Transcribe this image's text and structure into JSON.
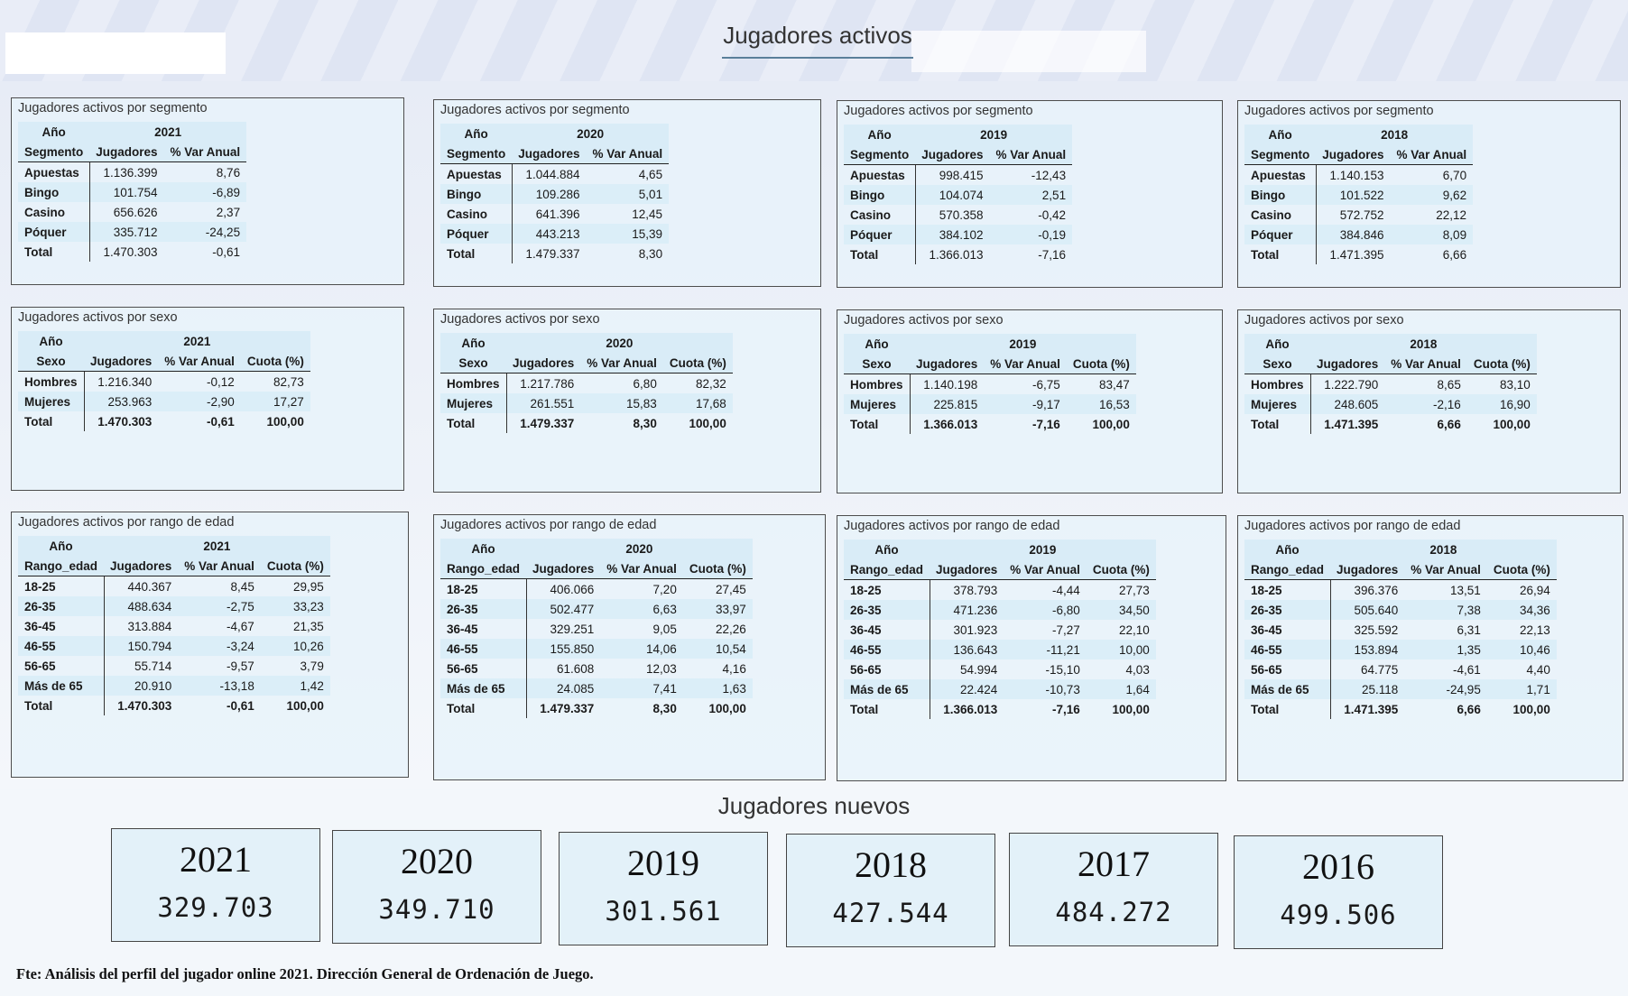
{
  "header": {
    "title": "Jugadores activos"
  },
  "segment_panels": [
    {
      "title": "Jugadores activos por segmento",
      "year_label": "Año",
      "year": "2021",
      "row_header": "Segmento",
      "col1": "Jugadores",
      "col2": "% Var Anual",
      "rows": [
        [
          "Apuestas",
          "1.136.399",
          "8,76"
        ],
        [
          "Bingo",
          "101.754",
          "-6,89"
        ],
        [
          "Casino",
          "656.626",
          "2,37"
        ],
        [
          "Póquer",
          "335.712",
          "-24,25"
        ],
        [
          "Total",
          "1.470.303",
          "-0,61"
        ]
      ]
    },
    {
      "title": "Jugadores activos por segmento",
      "year_label": "Año",
      "year": "2020",
      "row_header": "Segmento",
      "col1": "Jugadores",
      "col2": "% Var Anual",
      "rows": [
        [
          "Apuestas",
          "1.044.884",
          "4,65"
        ],
        [
          "Bingo",
          "109.286",
          "5,01"
        ],
        [
          "Casino",
          "641.396",
          "12,45"
        ],
        [
          "Póquer",
          "443.213",
          "15,39"
        ],
        [
          "Total",
          "1.479.337",
          "8,30"
        ]
      ]
    },
    {
      "title": "Jugadores activos por segmento",
      "year_label": "Año",
      "year": "2019",
      "row_header": "Segmento",
      "col1": "Jugadores",
      "col2": "% Var Anual",
      "rows": [
        [
          "Apuestas",
          "998.415",
          "-12,43"
        ],
        [
          "Bingo",
          "104.074",
          "2,51"
        ],
        [
          "Casino",
          "570.358",
          "-0,42"
        ],
        [
          "Póquer",
          "384.102",
          "-0,19"
        ],
        [
          "Total",
          "1.366.013",
          "-7,16"
        ]
      ]
    },
    {
      "title": "Jugadores activos por segmento",
      "year_label": "Año",
      "year": "2018",
      "row_header": "Segmento",
      "col1": "Jugadores",
      "col2": "% Var Anual",
      "rows": [
        [
          "Apuestas",
          "1.140.153",
          "6,70"
        ],
        [
          "Bingo",
          "101.522",
          "9,62"
        ],
        [
          "Casino",
          "572.752",
          "22,12"
        ],
        [
          "Póquer",
          "384.846",
          "8,09"
        ],
        [
          "Total",
          "1.471.395",
          "6,66"
        ]
      ]
    }
  ],
  "sex_panels": [
    {
      "title": "Jugadores activos por sexo",
      "year_label": "Año",
      "year": "2021",
      "row_header": "Sexo",
      "col1": "Jugadores",
      "col2": "% Var Anual",
      "col3": "Cuota (%)",
      "rows": [
        [
          "Hombres",
          "1.216.340",
          "-0,12",
          "82,73"
        ],
        [
          "Mujeres",
          "253.963",
          "-2,90",
          "17,27"
        ],
        [
          "Total",
          "1.470.303",
          "-0,61",
          "100,00"
        ]
      ]
    },
    {
      "title": "Jugadores activos por sexo",
      "year_label": "Año",
      "year": "2020",
      "row_header": "Sexo",
      "col1": "Jugadores",
      "col2": "% Var Anual",
      "col3": "Cuota (%)",
      "rows": [
        [
          "Hombres",
          "1.217.786",
          "6,80",
          "82,32"
        ],
        [
          "Mujeres",
          "261.551",
          "15,83",
          "17,68"
        ],
        [
          "Total",
          "1.479.337",
          "8,30",
          "100,00"
        ]
      ]
    },
    {
      "title": "Jugadores activos por sexo",
      "year_label": "Año",
      "year": "2019",
      "row_header": "Sexo",
      "col1": "Jugadores",
      "col2": "% Var Anual",
      "col3": "Cuota (%)",
      "rows": [
        [
          "Hombres",
          "1.140.198",
          "-6,75",
          "83,47"
        ],
        [
          "Mujeres",
          "225.815",
          "-9,17",
          "16,53"
        ],
        [
          "Total",
          "1.366.013",
          "-7,16",
          "100,00"
        ]
      ]
    },
    {
      "title": "Jugadores activos por sexo",
      "year_label": "Año",
      "year": "2018",
      "row_header": "Sexo",
      "col1": "Jugadores",
      "col2": "% Var Anual",
      "col3": "Cuota (%)",
      "rows": [
        [
          "Hombres",
          "1.222.790",
          "8,65",
          "83,10"
        ],
        [
          "Mujeres",
          "248.605",
          "-2,16",
          "16,90"
        ],
        [
          "Total",
          "1.471.395",
          "6,66",
          "100,00"
        ]
      ]
    }
  ],
  "age_panels": [
    {
      "title": "Jugadores activos por rango de edad",
      "year_label": "Año",
      "year": "2021",
      "row_header": "Rango_edad",
      "col1": "Jugadores",
      "col2": "% Var Anual",
      "col3": "Cuota (%)",
      "rows": [
        [
          "18-25",
          "440.367",
          "8,45",
          "29,95"
        ],
        [
          "26-35",
          "488.634",
          "-2,75",
          "33,23"
        ],
        [
          "36-45",
          "313.884",
          "-4,67",
          "21,35"
        ],
        [
          "46-55",
          "150.794",
          "-3,24",
          "10,26"
        ],
        [
          "56-65",
          "55.714",
          "-9,57",
          "3,79"
        ],
        [
          "Más de 65",
          "20.910",
          "-13,18",
          "1,42"
        ],
        [
          "Total",
          "1.470.303",
          "-0,61",
          "100,00"
        ]
      ]
    },
    {
      "title": "Jugadores activos por rango de edad",
      "year_label": "Año",
      "year": "2020",
      "row_header": "Rango_edad",
      "col1": "Jugadores",
      "col2": "% Var Anual",
      "col3": "Cuota (%)",
      "rows": [
        [
          "18-25",
          "406.066",
          "7,20",
          "27,45"
        ],
        [
          "26-35",
          "502.477",
          "6,63",
          "33,97"
        ],
        [
          "36-45",
          "329.251",
          "9,05",
          "22,26"
        ],
        [
          "46-55",
          "155.850",
          "14,06",
          "10,54"
        ],
        [
          "56-65",
          "61.608",
          "12,03",
          "4,16"
        ],
        [
          "Más de 65",
          "24.085",
          "7,41",
          "1,63"
        ],
        [
          "Total",
          "1.479.337",
          "8,30",
          "100,00"
        ]
      ]
    },
    {
      "title": "Jugadores activos por rango de edad",
      "year_label": "Año",
      "year": "2019",
      "row_header": "Rango_edad",
      "col1": "Jugadores",
      "col2": "% Var Anual",
      "col3": "Cuota (%)",
      "rows": [
        [
          "18-25",
          "378.793",
          "-4,44",
          "27,73"
        ],
        [
          "26-35",
          "471.236",
          "-6,80",
          "34,50"
        ],
        [
          "36-45",
          "301.923",
          "-7,27",
          "22,10"
        ],
        [
          "46-55",
          "136.643",
          "-11,21",
          "10,00"
        ],
        [
          "56-65",
          "54.994",
          "-15,10",
          "4,03"
        ],
        [
          "Más de 65",
          "22.424",
          "-10,73",
          "1,64"
        ],
        [
          "Total",
          "1.366.013",
          "-7,16",
          "100,00"
        ]
      ]
    },
    {
      "title": "Jugadores activos por rango de edad",
      "year_label": "Año",
      "year": "2018",
      "row_header": "Rango_edad",
      "col1": "Jugadores",
      "col2": "% Var Anual",
      "col3": "Cuota (%)",
      "rows": [
        [
          "18-25",
          "396.376",
          "13,51",
          "26,94"
        ],
        [
          "26-35",
          "505.640",
          "7,38",
          "34,36"
        ],
        [
          "36-45",
          "325.592",
          "6,31",
          "22,13"
        ],
        [
          "46-55",
          "153.894",
          "1,35",
          "10,46"
        ],
        [
          "56-65",
          "64.775",
          "-4,61",
          "4,40"
        ],
        [
          "Más de 65",
          "25.118",
          "-24,95",
          "1,71"
        ],
        [
          "Total",
          "1.471.395",
          "6,66",
          "100,00"
        ]
      ]
    }
  ],
  "new_players": {
    "title": "Jugadores nuevos",
    "cards": [
      {
        "year": "2021",
        "value": "329.703"
      },
      {
        "year": "2020",
        "value": "349.710"
      },
      {
        "year": "2019",
        "value": "301.561"
      },
      {
        "year": "2018",
        "value": "427.544"
      },
      {
        "year": "2017",
        "value": "484.272"
      },
      {
        "year": "2016",
        "value": "499.506"
      }
    ]
  },
  "footer": {
    "source": "Fte: Análisis del perfil del jugador online 2021. Dirección General de Ordenación de Juego."
  }
}
